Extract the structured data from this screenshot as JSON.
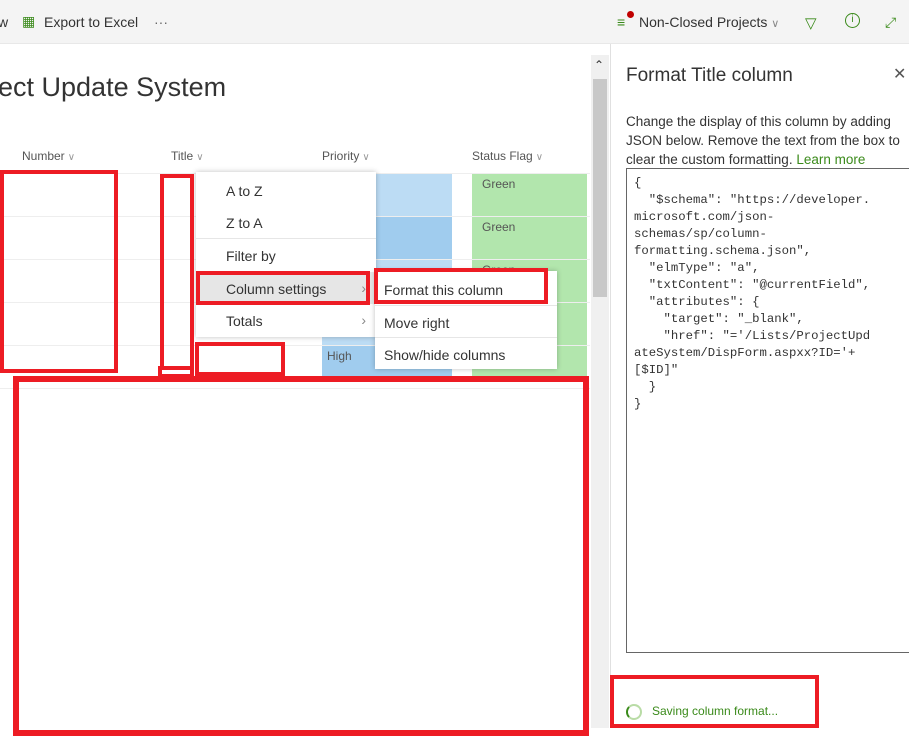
{
  "commandbar": {
    "partial_left": "w",
    "export_label": "Export to Excel",
    "more": "···",
    "view_name": "Non-Closed Projects",
    "icons": [
      "excel-icon",
      "view-filter-icon",
      "filter-icon",
      "info-icon",
      "expand-icon"
    ]
  },
  "page": {
    "title": "ject Update System"
  },
  "columns": [
    "Number",
    "Title",
    "Priority",
    "Status Flag"
  ],
  "rows": [
    {
      "priority": "",
      "status": "Green"
    },
    {
      "priority": "",
      "status": "Green"
    },
    {
      "priority": "",
      "status": "Green"
    },
    {
      "priority": "",
      "status": ""
    },
    {
      "priority": "High",
      "status": ""
    }
  ],
  "context_menu": {
    "items": [
      "A to Z",
      "Z to A",
      "Filter by",
      "Column settings",
      "Totals"
    ]
  },
  "submenu": {
    "items": [
      "Format this column",
      "Move right",
      "Show/hide columns"
    ]
  },
  "panel": {
    "title": "Format Title column",
    "description": "Change the display of this column by adding JSON below. Remove the text from the box to clear the custom formatting.",
    "learn_more": "Learn more",
    "code": "{\n  \"$schema\": \"https://developer.\nmicrosoft.com/json-\nschemas/sp/column-\nformatting.schema.json\",\n  \"elmType\": \"a\",\n  \"txtContent\": \"@currentField\",\n  \"attributes\": {\n    \"target\": \"_blank\",\n    \"href\": \"='/Lists/ProjectUpd\nateSystem/DispForm.aspxx?ID='+\n[$ID]\"\n  }\n}",
    "status": "Saving column format..."
  },
  "colors": {
    "accent": "#3a8a1a",
    "highlight": "#ed1c24",
    "status_green": "#b2e6ad",
    "priority_blue": "#a0ccee"
  }
}
